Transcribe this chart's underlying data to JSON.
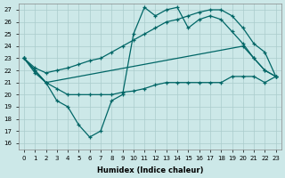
{
  "xlabel": "Humidex (Indice chaleur)",
  "bg_color": "#cce8e8",
  "grid_color": "#aacccc",
  "line_color": "#006666",
  "xlim": [
    -0.5,
    23.5
  ],
  "ylim": [
    15.5,
    27.5
  ],
  "yticks": [
    16,
    17,
    18,
    19,
    20,
    21,
    22,
    23,
    24,
    25,
    26,
    27
  ],
  "xticks": [
    0,
    1,
    2,
    3,
    4,
    5,
    6,
    7,
    8,
    9,
    10,
    11,
    12,
    13,
    14,
    15,
    16,
    17,
    18,
    19,
    20,
    21,
    22,
    23
  ],
  "line_jagged_x": [
    0,
    1,
    2,
    3,
    4,
    5,
    6,
    7,
    8,
    9,
    10,
    11,
    12,
    13,
    14,
    15,
    16,
    17,
    18,
    19,
    20,
    21,
    22,
    23
  ],
  "line_jagged_y": [
    23,
    22,
    21,
    19.5,
    19,
    17.5,
    16.5,
    17,
    19.5,
    20,
    25,
    27.2,
    26.5,
    27,
    27.2,
    25.5,
    26.2,
    26.5,
    26.2,
    25.2,
    24.2,
    23,
    22,
    21.5
  ],
  "line_upper_x": [
    0,
    1,
    2,
    3,
    4,
    5,
    6,
    7,
    8,
    9,
    10,
    11,
    12,
    13,
    14,
    15,
    16,
    17,
    18,
    19,
    20,
    21,
    22,
    23
  ],
  "line_upper_y": [
    23,
    22.2,
    21.8,
    22,
    22.2,
    22.5,
    22.8,
    23,
    23.5,
    24,
    24.5,
    25,
    25.5,
    26,
    26.2,
    26.5,
    26.8,
    27,
    27,
    26.5,
    25.5,
    24.2,
    23.5,
    21.5
  ],
  "line_lower_x": [
    0,
    1,
    2,
    3,
    4,
    5,
    6,
    7,
    8,
    9,
    10,
    11,
    12,
    13,
    14,
    15,
    16,
    17,
    18,
    19,
    20,
    21,
    22,
    23
  ],
  "line_lower_y": [
    23,
    21.8,
    21,
    20.5,
    20,
    20,
    20,
    20,
    20,
    20.2,
    20.3,
    20.5,
    20.8,
    21,
    21,
    21,
    21,
    21,
    21,
    21.5,
    21.5,
    21.5,
    21,
    21.5
  ],
  "line_short_x": [
    0,
    1,
    2,
    20,
    21,
    22,
    23
  ],
  "line_short_y": [
    23,
    22,
    21,
    24,
    23,
    22,
    21.5
  ]
}
